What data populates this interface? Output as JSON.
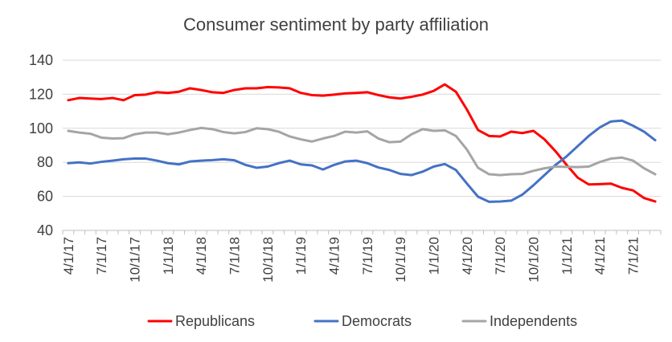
{
  "chart_data": {
    "type": "line",
    "title": "Consumer sentiment by party affiliation",
    "xlabel": "",
    "ylabel": "",
    "ylim": [
      40,
      140
    ],
    "yticks": [
      "140",
      "120",
      "100",
      "80",
      "60",
      "40"
    ],
    "ytick_values": [
      140,
      120,
      100,
      80,
      60,
      40
    ],
    "grid": true,
    "legend_position": "bottom",
    "x": [
      "4/1/17",
      "5/1/17",
      "6/1/17",
      "7/1/17",
      "8/1/17",
      "9/1/17",
      "10/1/17",
      "11/1/17",
      "12/1/17",
      "1/1/18",
      "2/1/18",
      "3/1/18",
      "4/1/18",
      "5/1/18",
      "6/1/18",
      "7/1/18",
      "8/1/18",
      "9/1/18",
      "10/1/18",
      "11/1/18",
      "12/1/18",
      "1/1/19",
      "2/1/19",
      "3/1/19",
      "4/1/19",
      "5/1/19",
      "6/1/19",
      "7/1/19",
      "8/1/19",
      "9/1/19",
      "10/1/19",
      "11/1/19",
      "12/1/19",
      "1/1/20",
      "2/1/20",
      "3/1/20",
      "4/1/20",
      "5/1/20",
      "6/1/20",
      "7/1/20",
      "8/1/20",
      "9/1/20",
      "10/1/20",
      "11/1/20",
      "12/1/20",
      "1/1/21",
      "2/1/21",
      "3/1/21",
      "4/1/21",
      "5/1/21",
      "6/1/21",
      "7/1/21",
      "8/1/21",
      "9/1/21"
    ],
    "xtick_labels": [
      "4/1/17",
      "7/1/17",
      "10/1/17",
      "1/1/18",
      "4/1/18",
      "7/1/18",
      "10/1/18",
      "1/1/19",
      "4/1/19",
      "7/1/19",
      "10/1/19",
      "1/1/20",
      "4/1/20",
      "7/1/20",
      "10/1/20",
      "1/1/21",
      "4/1/21",
      "7/1/21"
    ],
    "series": [
      {
        "name": "Republicans",
        "color": "#ff0000",
        "values": [
          116.5,
          117.8,
          117.5,
          117.2,
          117.8,
          116.5,
          119.5,
          119.8,
          121.2,
          120.8,
          121.5,
          123.5,
          122.5,
          121.2,
          120.8,
          122.5,
          123.5,
          123.5,
          124.2,
          124.0,
          123.5,
          120.8,
          119.5,
          119.2,
          119.8,
          120.5,
          120.8,
          121.2,
          119.5,
          118.2,
          117.5,
          118.5,
          119.8,
          122.0,
          125.8,
          121.5,
          111.0,
          99.0,
          95.5,
          95.2,
          98.0,
          97.2,
          98.5,
          93.5,
          86.5,
          78.5,
          71.0,
          67.0,
          67.2,
          67.5,
          65.0,
          63.5,
          59.0,
          57.0
        ]
      },
      {
        "name": "Democrats",
        "color": "#4472c4",
        "values": [
          79.5,
          80.0,
          79.3,
          80.3,
          81.0,
          81.8,
          82.2,
          82.2,
          81.0,
          79.5,
          78.8,
          80.5,
          81.0,
          81.3,
          81.8,
          81.2,
          78.5,
          76.8,
          77.5,
          79.5,
          81.0,
          78.8,
          78.2,
          75.8,
          78.5,
          80.5,
          81.0,
          79.5,
          77.0,
          75.5,
          73.2,
          72.5,
          74.5,
          77.5,
          79.0,
          75.5,
          67.5,
          59.8,
          56.8,
          57.0,
          57.5,
          61.0,
          66.5,
          72.5,
          78.5,
          83.5,
          89.5,
          95.5,
          100.5,
          104.0,
          104.5,
          101.5,
          98.0,
          93.0
        ]
      },
      {
        "name": "Independents",
        "color": "#a5a5a5",
        "values": [
          98.5,
          97.5,
          96.8,
          94.5,
          94.0,
          94.2,
          96.5,
          97.5,
          97.5,
          96.5,
          97.5,
          99.0,
          100.2,
          99.5,
          97.8,
          97.0,
          97.8,
          100.0,
          99.5,
          98.0,
          95.2,
          93.5,
          92.2,
          94.0,
          95.5,
          98.0,
          97.5,
          98.2,
          94.0,
          91.8,
          92.2,
          96.5,
          99.5,
          98.5,
          98.8,
          95.5,
          87.5,
          76.8,
          73.0,
          72.5,
          73.0,
          73.2,
          75.0,
          76.5,
          77.5,
          77.3,
          77.2,
          77.5,
          80.2,
          82.2,
          82.8,
          81.0,
          76.5,
          73.0
        ]
      }
    ]
  }
}
